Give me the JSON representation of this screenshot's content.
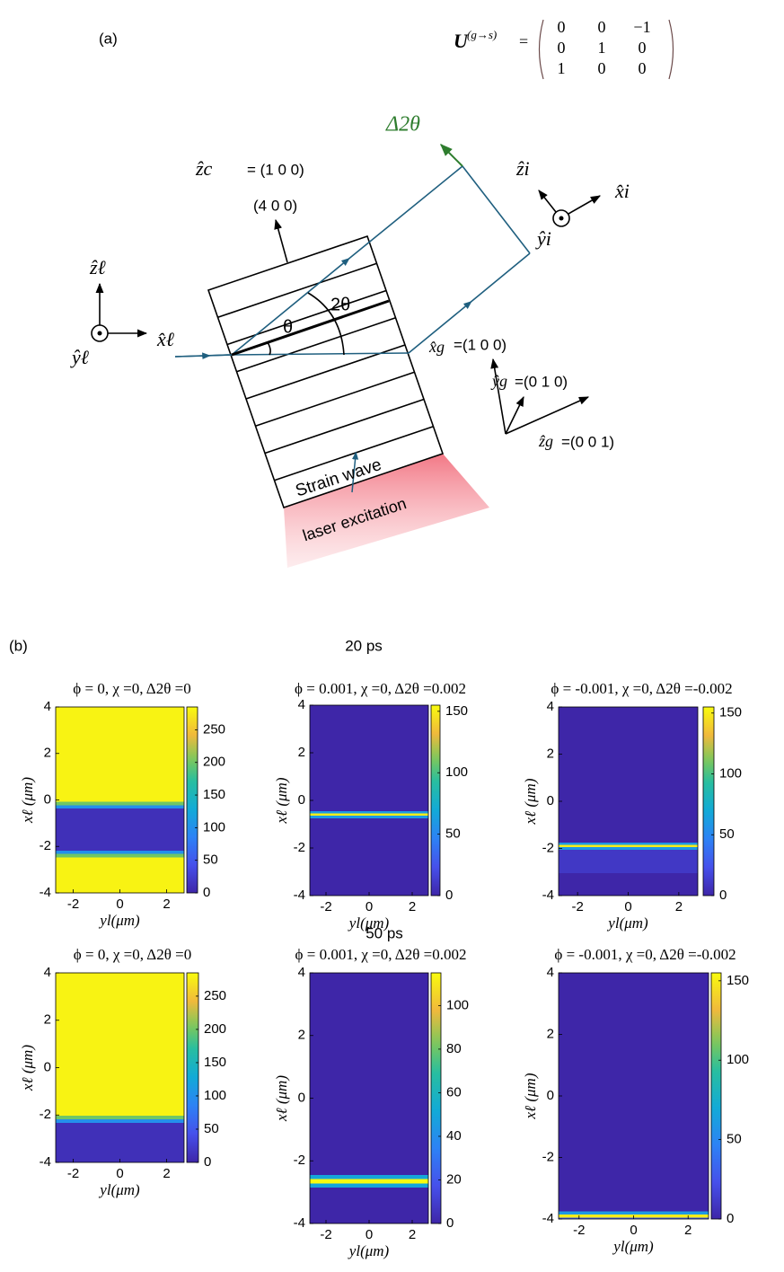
{
  "figure": {
    "panel_a_label": "(a)",
    "matrix_symbol": "U",
    "matrix_superscript": "(g→s)",
    "equals": "=",
    "matrix": [
      [
        "0",
        "0",
        "−1"
      ],
      [
        "0",
        "1",
        "0"
      ],
      [
        "1",
        "0",
        "0"
      ]
    ],
    "delta_label": "Δ2θ",
    "zc": "ẑc",
    "zc_value": "= (1 0 0)",
    "reflection": "(4 0 0)",
    "theta": "θ",
    "two_theta": "2θ",
    "zl": "ẑℓ",
    "yl": "ŷℓ",
    "xl": "x̂ℓ",
    "zi": "ẑi",
    "yi": "ŷi",
    "xi": "x̂i",
    "xg": "x̂g",
    "xg_value": "=(1 0 0)",
    "yg": "ŷg",
    "yg_value": "=(0 1 0)",
    "zg": "ẑg",
    "zg_value": "=(0 0 1)",
    "strain": "Strain wave",
    "laser": "laser excitation",
    "panel_b_label": "(b)",
    "row_titles": [
      "20 ps",
      "50 ps"
    ]
  },
  "chart_data": [
    {
      "type": "heatmap",
      "title": "ϕ = 0, χ =0, Δ2θ =0",
      "xlabel": "yl(μm)",
      "ylabel": "xℓ (μm)",
      "x": [
        4,
        0,
        -0.15,
        -0.3,
        -0.45,
        -2.1,
        -2.25,
        -2.4,
        -2.55,
        -4
      ],
      "values": [
        280,
        280,
        200,
        100,
        10,
        10,
        100,
        200,
        280,
        280
      ],
      "xlim": [
        -2.75,
        2.75
      ],
      "ylim": [
        -4,
        4
      ],
      "xticks": [
        -2,
        0,
        2
      ],
      "yticks": [
        -4,
        -2,
        0,
        2,
        4
      ],
      "clim": [
        0,
        285
      ],
      "cticks": [
        0,
        50,
        100,
        150,
        200,
        250
      ]
    },
    {
      "type": "heatmap",
      "title": "ϕ = 0.001, χ =0, Δ2θ =0.002",
      "xlabel": "yl(μm)",
      "ylabel": "xℓ (μm)",
      "x": [
        4,
        -0.4,
        -0.5,
        -0.6,
        -0.7,
        -0.8,
        -4
      ],
      "values": [
        0,
        0,
        60,
        150,
        60,
        0,
        0
      ],
      "xlim": [
        -2.75,
        2.75
      ],
      "ylim": [
        -4,
        4
      ],
      "xticks": [
        -2,
        0,
        2
      ],
      "yticks": [
        -4,
        -2,
        0,
        2,
        4
      ],
      "clim": [
        0,
        155
      ],
      "cticks": [
        0,
        50,
        100,
        150
      ]
    },
    {
      "type": "heatmap",
      "title": "ϕ = -0.001, χ =0, Δ2θ =-0.002",
      "xlabel": "yl(μm)",
      "ylabel": "xℓ (μm)",
      "x": [
        4,
        -1.7,
        -1.8,
        -1.9,
        -2.0,
        -2.1,
        -4
      ],
      "values": [
        0,
        0,
        60,
        150,
        60,
        10,
        0
      ],
      "xlim": [
        -2.75,
        2.75
      ],
      "ylim": [
        -4,
        4
      ],
      "xticks": [
        -2,
        0,
        2
      ],
      "yticks": [
        -4,
        -2,
        0,
        2,
        4
      ],
      "clim": [
        0,
        155
      ],
      "cticks": [
        0,
        50,
        100,
        150
      ]
    },
    {
      "type": "heatmap",
      "title": "ϕ = 0, χ =0, Δ2θ =0",
      "xlabel": "yl(μm)",
      "ylabel": "xℓ (μm)",
      "x": [
        4,
        -1.95,
        -2.1,
        -2.25,
        -2.4,
        -4
      ],
      "values": [
        280,
        280,
        200,
        100,
        10,
        10
      ],
      "xlim": [
        -2.75,
        2.75
      ],
      "ylim": [
        -4,
        4
      ],
      "xticks": [
        -2,
        0,
        2
      ],
      "yticks": [
        -4,
        -2,
        0,
        2,
        4
      ],
      "clim": [
        0,
        285
      ],
      "cticks": [
        0,
        50,
        100,
        150,
        200,
        250
      ]
    },
    {
      "type": "heatmap",
      "title": "ϕ = 0.001, χ =0, Δ2θ =0.002",
      "xlabel": "yl(μm)",
      "ylabel": "xℓ (μm)",
      "x": [
        4,
        -2.4,
        -2.5,
        -2.65,
        -2.8,
        -2.9,
        -4
      ],
      "values": [
        0,
        0,
        50,
        115,
        50,
        0,
        0
      ],
      "xlim": [
        -2.75,
        2.75
      ],
      "ylim": [
        -4,
        4
      ],
      "xticks": [
        -2,
        0,
        2
      ],
      "yticks": [
        -4,
        -2,
        0,
        2,
        4
      ],
      "clim": [
        0,
        115
      ],
      "cticks": [
        0,
        20,
        40,
        60,
        80,
        100
      ]
    },
    {
      "type": "heatmap",
      "title": "ϕ = -0.001, χ =0, Δ2θ =-0.002",
      "xlabel": "yl(μm)",
      "ylabel": "xℓ (μm)",
      "x": [
        4,
        -3.7,
        -3.8,
        -3.9,
        -4
      ],
      "values": [
        0,
        0,
        60,
        150,
        30
      ],
      "xlim": [
        -2.75,
        2.75
      ],
      "ylim": [
        -4,
        4
      ],
      "xticks": [
        -2,
        0,
        2
      ],
      "yticks": [
        -4,
        -2,
        0,
        2,
        4
      ],
      "clim": [
        0,
        155
      ],
      "cticks": [
        0,
        50,
        100,
        150
      ]
    }
  ]
}
